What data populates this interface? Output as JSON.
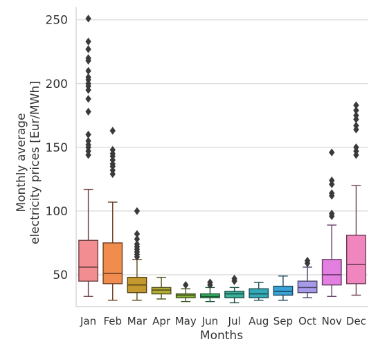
{
  "chart_data": {
    "type": "box",
    "xlabel": "Months",
    "ylabel_lines": [
      "Monthly average",
      "electricity prices [Eur/MWh]"
    ],
    "ylim": [
      25,
      258
    ],
    "yticks": [
      50,
      100,
      150,
      200,
      250
    ],
    "grid": "horizontal",
    "categories": [
      "Jan",
      "Feb",
      "Mar",
      "Apr",
      "May",
      "Jun",
      "Jul",
      "Aug",
      "Sep",
      "Oct",
      "Nov",
      "Dec"
    ],
    "series": [
      {
        "category": "Jan",
        "color": "#f28e92",
        "whisker_low": 33,
        "q1": 45,
        "median": 56,
        "q3": 77,
        "whisker_high": 117,
        "outliers": [
          251,
          233,
          227,
          220,
          218,
          210,
          205,
          203,
          200,
          198,
          195,
          188,
          178,
          160,
          155,
          152,
          150,
          147,
          144
        ]
      },
      {
        "category": "Feb",
        "color": "#f08c4e",
        "whisker_low": 30,
        "q1": 43,
        "median": 51,
        "q3": 75,
        "whisker_high": 107,
        "outliers": [
          163,
          148,
          145,
          143,
          140,
          137,
          135,
          132,
          129
        ]
      },
      {
        "category": "Mar",
        "color": "#c49a2f",
        "whisker_low": 30,
        "q1": 36,
        "median": 42,
        "q3": 48,
        "whisker_high": 62,
        "outliers": [
          100,
          82,
          78,
          74,
          72,
          70,
          68,
          66,
          64
        ]
      },
      {
        "category": "Apr",
        "color": "#b4ad36",
        "whisker_low": 31,
        "q1": 35,
        "median": 38,
        "q3": 40,
        "whisker_high": 48,
        "outliers": []
      },
      {
        "category": "May",
        "color": "#8cb43b",
        "whisker_low": 29,
        "q1": 32,
        "median": 34,
        "q3": 35,
        "whisker_high": 39,
        "outliers": [
          42
        ]
      },
      {
        "category": "Jun",
        "color": "#3ab568",
        "whisker_low": 29,
        "q1": 32,
        "median": 33,
        "q3": 35,
        "whisker_high": 40,
        "outliers": [
          44,
          42
        ]
      },
      {
        "category": "Jul",
        "color": "#38b09c",
        "whisker_low": 28,
        "q1": 32,
        "median": 35,
        "q3": 37,
        "whisker_high": 40,
        "outliers": [
          47,
          45
        ]
      },
      {
        "category": "Aug",
        "color": "#35aab6",
        "whisker_low": 30,
        "q1": 32,
        "median": 35,
        "q3": 39,
        "whisker_high": 44,
        "outliers": []
      },
      {
        "category": "Sep",
        "color": "#39a2d6",
        "whisker_low": 30,
        "q1": 34,
        "median": 37,
        "q3": 41,
        "whisker_high": 49,
        "outliers": []
      },
      {
        "category": "Oct",
        "color": "#a79ae8",
        "whisker_low": 32,
        "q1": 36,
        "median": 40,
        "q3": 45,
        "whisker_high": 56,
        "outliers": [
          61,
          59
        ]
      },
      {
        "category": "Nov",
        "color": "#e27fe0",
        "whisker_low": 33,
        "q1": 42,
        "median": 50,
        "q3": 62,
        "whisker_high": 89,
        "outliers": [
          146,
          124,
          121,
          114,
          112,
          98,
          96
        ]
      },
      {
        "category": "Dec",
        "color": "#ef86be",
        "whisker_low": 34,
        "q1": 43,
        "median": 58,
        "q3": 81,
        "whisker_high": 120,
        "outliers": [
          183,
          179,
          175,
          172,
          167,
          164,
          150,
          147,
          144
        ]
      }
    ]
  }
}
